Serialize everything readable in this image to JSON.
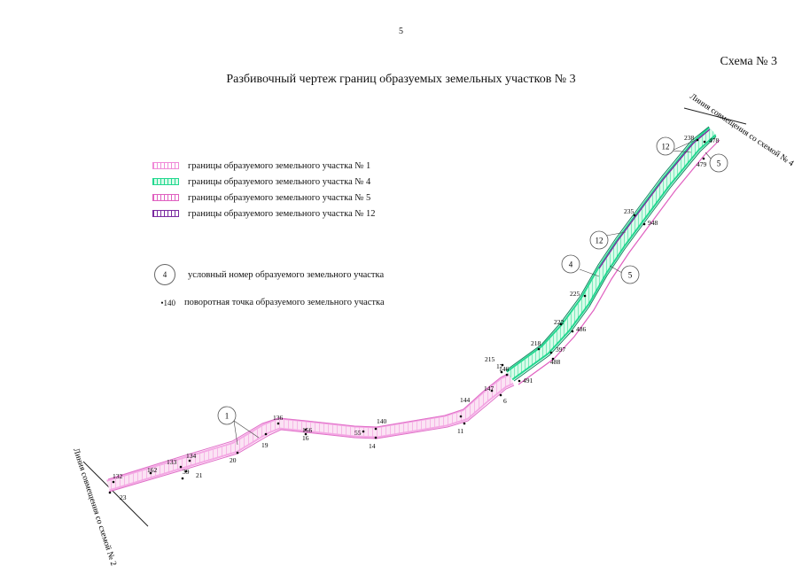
{
  "page_number": "5",
  "scheme_label": "Схема № 3",
  "title": "Разбивочный чертеж границ образуемых земельных участков № 3",
  "legend": [
    {
      "label": "границы образуемого земельного участка № 1",
      "color": "#f08ad8"
    },
    {
      "label": "границы образуемого земельного участка № 4",
      "color": "#22d890"
    },
    {
      "label": "границы образуемого земельного участка № 5",
      "color": "#e060c0"
    },
    {
      "label": "границы образуемого земельного участка № 12",
      "color": "#7a2aa0"
    }
  ],
  "legend_symbols": [
    {
      "sample": "4",
      "label": "условный номер образуемого земельного участка"
    },
    {
      "sample": "140",
      "label": "поворотная точка образуемого земельного участка"
    }
  ],
  "match_lines": [
    {
      "label": "Линия совмещения со схемой № 2"
    },
    {
      "label": "Линия совмещения со схемой № 4"
    }
  ],
  "parcel_numbers": [
    "1",
    "4",
    "5",
    "12",
    "12",
    "5"
  ],
  "points": [
    "132",
    "23",
    "162",
    "133",
    "39",
    "21",
    "134",
    "20",
    "19",
    "136",
    "156",
    "16",
    "55",
    "140",
    "14",
    "144",
    "11",
    "147",
    "6",
    "146",
    "215",
    "17",
    "491",
    "218",
    "397",
    "488",
    "222",
    "486",
    "225",
    "235",
    "948",
    "238",
    "478",
    "479"
  ]
}
